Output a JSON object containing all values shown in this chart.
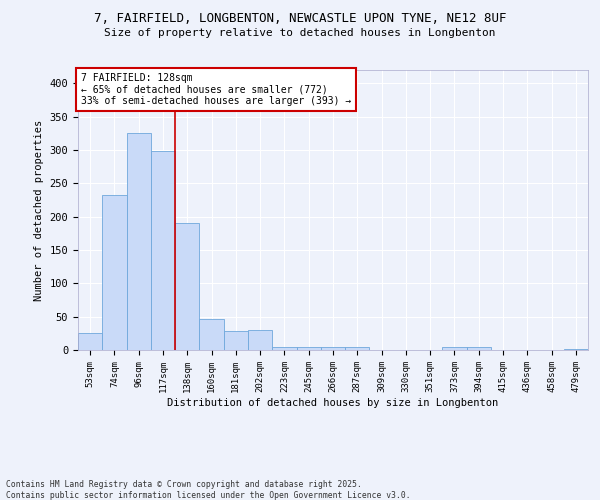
{
  "title_line1": "7, FAIRFIELD, LONGBENTON, NEWCASTLE UPON TYNE, NE12 8UF",
  "title_line2": "Size of property relative to detached houses in Longbenton",
  "xlabel": "Distribution of detached houses by size in Longbenton",
  "ylabel": "Number of detached properties",
  "categories": [
    "53sqm",
    "74sqm",
    "96sqm",
    "117sqm",
    "138sqm",
    "160sqm",
    "181sqm",
    "202sqm",
    "223sqm",
    "245sqm",
    "266sqm",
    "287sqm",
    "309sqm",
    "330sqm",
    "351sqm",
    "373sqm",
    "394sqm",
    "415sqm",
    "436sqm",
    "458sqm",
    "479sqm"
  ],
  "values": [
    25,
    233,
    326,
    299,
    191,
    46,
    29,
    30,
    5,
    5,
    5,
    4,
    0,
    0,
    0,
    4,
    5,
    0,
    0,
    0,
    2
  ],
  "bar_color": "#c9daf8",
  "bar_edge_color": "#6fa8dc",
  "marker_label": "7 FAIRFIELD: 128sqm\n← 65% of detached houses are smaller (772)\n33% of semi-detached houses are larger (393) →",
  "annotation_box_color": "#ffffff",
  "annotation_border_color": "#cc0000",
  "vline_color": "#cc0000",
  "vline_x": 3,
  "background_color": "#eef2fb",
  "grid_color": "#ffffff",
  "footer_line1": "Contains HM Land Registry data © Crown copyright and database right 2025.",
  "footer_line2": "Contains public sector information licensed under the Open Government Licence v3.0.",
  "ylim": [
    0,
    420
  ],
  "yticks": [
    0,
    50,
    100,
    150,
    200,
    250,
    300,
    350,
    400
  ]
}
